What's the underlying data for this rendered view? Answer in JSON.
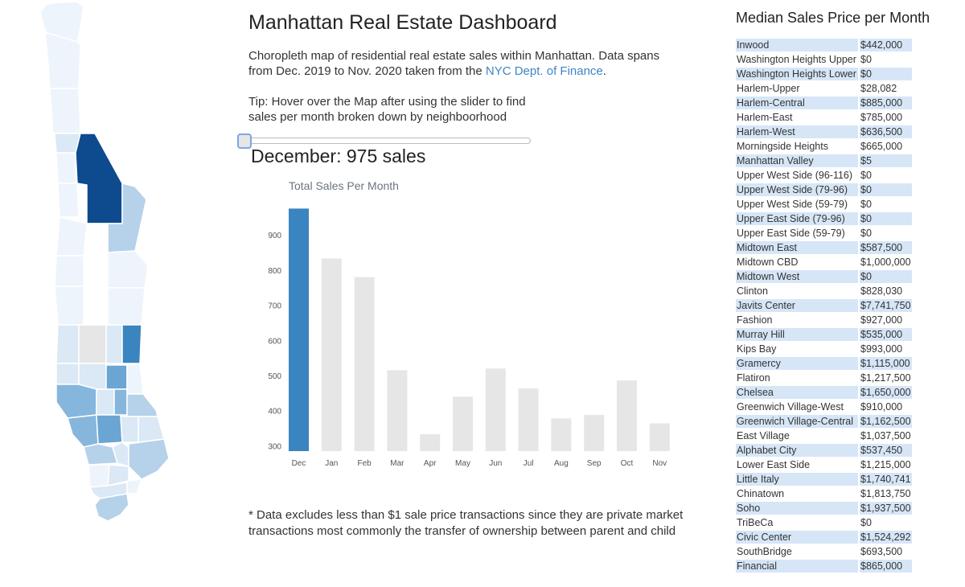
{
  "header": {
    "title": "Manhattan Real Estate Dashboard",
    "description": "Choropleth map of residential real estate sales within Manhattan. Data spans from Dec. 2019 to Nov. 2020 taken from the ",
    "link_text": "NYC Dept. of Finance",
    "description_end": ".",
    "tip": "Tip: Hover over the Map after using the slider to find sales per month broken down by neighboorhood"
  },
  "slider": {
    "selected_month": "December",
    "position_fraction": 0.0
  },
  "readout": "December: 975 sales",
  "footnote": "* Data excludes less than $1 sale price transactions since they are private market transactions most commonly the transfer of ownership between parent and child",
  "chart_data": {
    "type": "bar",
    "title": "Total Sales Per Month",
    "categories": [
      "Dec",
      "Jan",
      "Feb",
      "Mar",
      "Apr",
      "May",
      "Jun",
      "Jul",
      "Aug",
      "Sep",
      "Oct",
      "Nov"
    ],
    "values": [
      975,
      833,
      780,
      515,
      333,
      440,
      520,
      463,
      378,
      388,
      486,
      364
    ],
    "ylim": [
      285,
      985
    ],
    "yticks": [
      300,
      400,
      500,
      600,
      700,
      800,
      900
    ],
    "highlight_index": 0,
    "colors": {
      "highlight": "#3a84bf",
      "default": "#e6e6e6",
      "axis_text": "#555555",
      "title_text": "#6a7480"
    }
  },
  "table": {
    "title": "Median Sales Price per Month",
    "rows": [
      {
        "name": "Inwood",
        "value": "$442,000"
      },
      {
        "name": "Washington Heights Upper",
        "value": "$0"
      },
      {
        "name": "Washington Heights Lower",
        "value": "$0"
      },
      {
        "name": "Harlem-Upper",
        "value": "$28,082"
      },
      {
        "name": "Harlem-Central",
        "value": "$885,000"
      },
      {
        "name": "Harlem-East",
        "value": "$785,000"
      },
      {
        "name": "Harlem-West",
        "value": "$636,500"
      },
      {
        "name": "Morningside Heights",
        "value": "$665,000"
      },
      {
        "name": "Manhattan Valley",
        "value": "$5"
      },
      {
        "name": "Upper West Side (96-116)",
        "value": "$0"
      },
      {
        "name": "Upper West Side (79-96)",
        "value": "$0"
      },
      {
        "name": "Upper West Side (59-79)",
        "value": "$0"
      },
      {
        "name": "Upper East Side (79-96)",
        "value": "$0"
      },
      {
        "name": "Upper East Side (59-79)",
        "value": "$0"
      },
      {
        "name": "Midtown East",
        "value": "$587,500"
      },
      {
        "name": "Midtown CBD",
        "value": "$1,000,000"
      },
      {
        "name": "Midtown West",
        "value": "$0"
      },
      {
        "name": "Clinton",
        "value": "$828,030"
      },
      {
        "name": "Javits Center",
        "value": "$7,741,750"
      },
      {
        "name": "Fashion",
        "value": "$927,000"
      },
      {
        "name": "Murray Hill",
        "value": "$535,000"
      },
      {
        "name": "Kips Bay",
        "value": "$993,000"
      },
      {
        "name": "Gramercy",
        "value": "$1,115,000"
      },
      {
        "name": "Flatiron",
        "value": "$1,217,500"
      },
      {
        "name": "Chelsea",
        "value": "$1,650,000"
      },
      {
        "name": "Greenwich Village-West",
        "value": "$910,000"
      },
      {
        "name": "Greenwich Village-Central",
        "value": "$1,162,500"
      },
      {
        "name": "East Village",
        "value": "$1,037,500"
      },
      {
        "name": "Alphabet City",
        "value": "$537,450"
      },
      {
        "name": "Lower East Side",
        "value": "$1,215,000"
      },
      {
        "name": "Little Italy",
        "value": "$1,740,741"
      },
      {
        "name": "Chinatown",
        "value": "$1,813,750"
      },
      {
        "name": "Soho",
        "value": "$1,937,500"
      },
      {
        "name": "TriBeCa",
        "value": "$0"
      },
      {
        "name": "Civic Center",
        "value": "$1,524,292"
      },
      {
        "name": "SouthBridge",
        "value": "$693,500"
      },
      {
        "name": "Financial",
        "value": "$865,000"
      }
    ],
    "alt_row_color": "#d6e6f7"
  },
  "map": {
    "colors": {
      "lightest": "#eef4fb",
      "light": "#dbe8f5",
      "mid_light": "#b6d1ea",
      "mid": "#86b6dc",
      "mid_dark": "#6aa5d3",
      "dark_mid": "#3a84bf",
      "darkest": "#0d4a8e",
      "no_data": "#e6e6e6"
    }
  }
}
